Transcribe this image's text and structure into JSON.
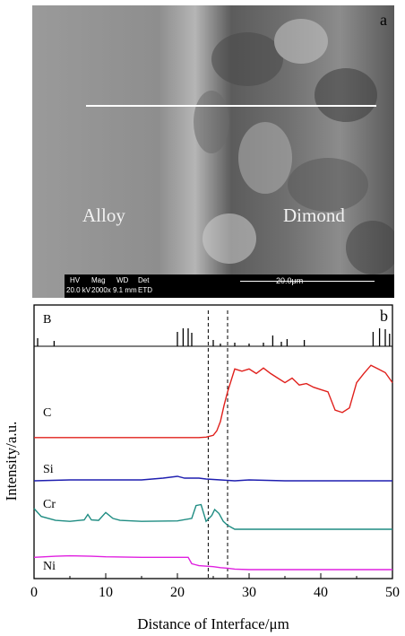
{
  "sem_image": {
    "panel_label": "a",
    "region_left_label": "Alloy",
    "region_right_label": "Dimond",
    "databar": {
      "headers": [
        "HV",
        "Mag",
        "WD",
        "Det"
      ],
      "values": [
        "20.0 kV",
        "2000x",
        "9.1 mm",
        "ETD"
      ],
      "scale_bar": "20.0μm"
    }
  },
  "chart_data": {
    "type": "line",
    "panel_label": "b",
    "xlabel": "Distance of Interface/μm",
    "ylabel": "Intensity/a.u.",
    "xlim": [
      0,
      50
    ],
    "x_ticks": [
      0,
      10,
      20,
      30,
      40,
      50
    ],
    "interface_lines_x": [
      24.3,
      27.0
    ],
    "series": [
      {
        "name": "B",
        "color": "#000000",
        "points": [
          [
            0,
            0
          ],
          [
            0.5,
            9
          ],
          [
            2.8,
            6
          ],
          [
            20,
            16
          ],
          [
            20.8,
            20
          ],
          [
            21.5,
            20
          ],
          [
            22,
            15
          ],
          [
            25,
            7
          ],
          [
            26,
            3
          ],
          [
            28,
            4
          ],
          [
            30,
            3
          ],
          [
            32,
            4
          ],
          [
            33.3,
            12
          ],
          [
            34.5,
            5
          ],
          [
            35.3,
            8
          ],
          [
            37.7,
            7
          ],
          [
            47.3,
            16
          ],
          [
            48.2,
            20
          ],
          [
            49,
            19
          ],
          [
            49.6,
            14
          ]
        ]
      },
      {
        "name": "C",
        "color": "#e0201c",
        "points": [
          [
            0,
            20
          ],
          [
            5,
            20
          ],
          [
            10,
            20
          ],
          [
            15,
            20
          ],
          [
            20,
            20
          ],
          [
            22,
            20
          ],
          [
            23,
            20
          ],
          [
            24,
            21
          ],
          [
            25,
            25
          ],
          [
            25.5,
            35
          ],
          [
            26,
            55
          ],
          [
            26.5,
            90
          ],
          [
            27,
            120
          ],
          [
            28,
            170
          ],
          [
            29,
            165
          ],
          [
            30,
            170
          ],
          [
            31,
            160
          ],
          [
            32,
            172
          ],
          [
            33,
            160
          ],
          [
            34,
            150
          ],
          [
            35,
            140
          ],
          [
            36,
            150
          ],
          [
            37,
            135
          ],
          [
            38,
            138
          ],
          [
            39,
            130
          ],
          [
            40,
            125
          ],
          [
            41,
            120
          ],
          [
            42,
            80
          ],
          [
            43,
            75
          ],
          [
            44,
            85
          ],
          [
            45,
            140
          ],
          [
            46,
            160
          ],
          [
            47,
            178
          ],
          [
            48,
            170
          ],
          [
            49,
            162
          ],
          [
            50,
            140
          ]
        ]
      },
      {
        "name": "Si",
        "color": "#1f1fb0",
        "points": [
          [
            0,
            0
          ],
          [
            5,
            1
          ],
          [
            10,
            1
          ],
          [
            15,
            1
          ],
          [
            18,
            3
          ],
          [
            20,
            5
          ],
          [
            21,
            3
          ],
          [
            23,
            3
          ],
          [
            24,
            2
          ],
          [
            26,
            1
          ],
          [
            28,
            0
          ],
          [
            30,
            1
          ],
          [
            35,
            0
          ],
          [
            40,
            0
          ],
          [
            45,
            0
          ],
          [
            50,
            0
          ]
        ]
      },
      {
        "name": "Cr",
        "color": "#1e8c82",
        "points": [
          [
            0,
            42
          ],
          [
            1,
            26
          ],
          [
            3,
            18
          ],
          [
            5,
            16
          ],
          [
            7,
            19
          ],
          [
            7.5,
            30
          ],
          [
            8,
            19
          ],
          [
            9,
            18
          ],
          [
            10,
            34
          ],
          [
            11,
            22
          ],
          [
            12,
            18
          ],
          [
            15,
            16
          ],
          [
            20,
            17
          ],
          [
            22,
            22
          ],
          [
            22.6,
            48
          ],
          [
            23.3,
            50
          ],
          [
            24,
            16
          ],
          [
            24.8,
            28
          ],
          [
            25.2,
            40
          ],
          [
            25.8,
            32
          ],
          [
            26.4,
            16
          ],
          [
            27,
            8
          ],
          [
            28,
            0
          ],
          [
            30,
            0
          ],
          [
            35,
            0
          ],
          [
            40,
            0
          ],
          [
            45,
            0
          ],
          [
            50,
            0
          ]
        ]
      },
      {
        "name": "Ni",
        "color": "#e020e0",
        "points": [
          [
            0,
            25
          ],
          [
            3,
            27
          ],
          [
            5,
            28
          ],
          [
            8,
            27
          ],
          [
            10,
            26
          ],
          [
            15,
            25
          ],
          [
            20,
            25
          ],
          [
            21.5,
            25
          ],
          [
            22,
            12
          ],
          [
            22.5,
            10
          ],
          [
            23,
            8
          ],
          [
            25,
            6
          ],
          [
            26,
            4
          ],
          [
            27,
            3
          ],
          [
            28,
            1
          ],
          [
            30,
            0
          ],
          [
            35,
            0
          ],
          [
            40,
            0
          ],
          [
            45,
            0
          ],
          [
            50,
            0
          ]
        ]
      }
    ]
  }
}
